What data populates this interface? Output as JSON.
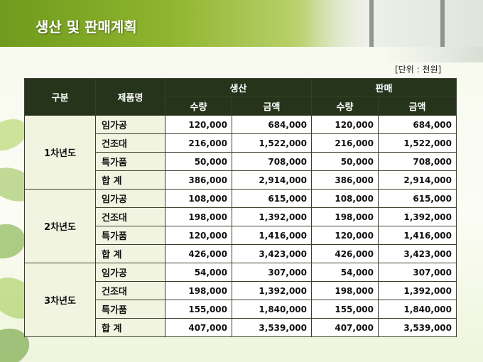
{
  "title": "생산 및 판매계획",
  "unit_note": "[단위 : 천원]",
  "table": {
    "headers": {
      "group": "구분",
      "product": "제품명",
      "production": "생산",
      "sales": "판매",
      "qty": "수량",
      "amount": "금액"
    },
    "groups": [
      {
        "label": "1차년도",
        "rows": [
          {
            "product": "임가공",
            "prod_qty": "120,000",
            "prod_amt": "684,000",
            "sale_qty": "120,000",
            "sale_amt": "684,000"
          },
          {
            "product": "건조대",
            "prod_qty": "216,000",
            "prod_amt": "1,522,000",
            "sale_qty": "216,000",
            "sale_amt": "1,522,000"
          },
          {
            "product": "특가품",
            "prod_qty": "50,000",
            "prod_amt": "708,000",
            "sale_qty": "50,000",
            "sale_amt": "708,000"
          },
          {
            "product": "합  계",
            "prod_qty": "386,000",
            "prod_amt": "2,914,000",
            "sale_qty": "386,000",
            "sale_amt": "2,914,000"
          }
        ]
      },
      {
        "label": "2차년도",
        "rows": [
          {
            "product": "임가공",
            "prod_qty": "108,000",
            "prod_amt": "615,000",
            "sale_qty": "108,000",
            "sale_amt": "615,000"
          },
          {
            "product": "건조대",
            "prod_qty": "198,000",
            "prod_amt": "1,392,000",
            "sale_qty": "198,000",
            "sale_amt": "1,392,000"
          },
          {
            "product": "특가품",
            "prod_qty": "120,000",
            "prod_amt": "1,416,000",
            "sale_qty": "120,000",
            "sale_amt": "1,416,000"
          },
          {
            "product": "합  계",
            "prod_qty": "426,000",
            "prod_amt": "3,423,000",
            "sale_qty": "426,000",
            "sale_amt": "3,423,000"
          }
        ]
      },
      {
        "label": "3차년도",
        "rows": [
          {
            "product": "임가공",
            "prod_qty": "54,000",
            "prod_amt": "307,000",
            "sale_qty": "54,000",
            "sale_amt": "307,000"
          },
          {
            "product": "건조대",
            "prod_qty": "198,000",
            "prod_amt": "1,392,000",
            "sale_qty": "198,000",
            "sale_amt": "1,392,000"
          },
          {
            "product": "특가품",
            "prod_qty": "155,000",
            "prod_amt": "1,840,000",
            "sale_qty": "155,000",
            "sale_amt": "1,840,000"
          },
          {
            "product": "합  계",
            "prod_qty": "407,000",
            "prod_amt": "3,539,000",
            "sale_qty": "407,000",
            "sale_amt": "3,539,000"
          }
        ]
      }
    ]
  }
}
